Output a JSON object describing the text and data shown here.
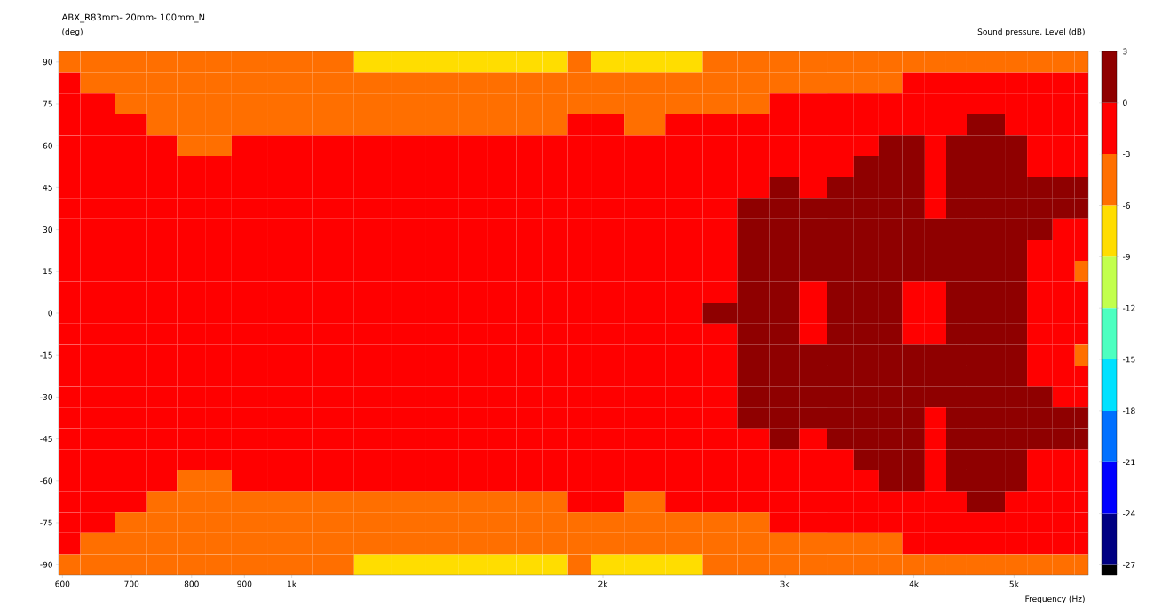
{
  "chart_data": {
    "type": "heatmap",
    "title": "ABX_R83mm- 20mm- 100mm_N",
    "ylabel": "(deg)",
    "xlabel": "Frequency  (Hz)",
    "clabel": "Sound pressure, Level  (dB)",
    "log": "x",
    "xlim": [
      595,
      5900
    ],
    "xticks": [
      600,
      700,
      800,
      900,
      {
        "value": 1000,
        "label": "1k"
      },
      {
        "value": 2000,
        "label": "2k"
      },
      {
        "value": 3000,
        "label": "3k"
      },
      {
        "value": 4000,
        "label": "4k"
      },
      {
        "value": 5000,
        "label": "5k"
      }
    ],
    "x": [
      600,
      650,
      700,
      750,
      800,
      850,
      900,
      1000,
      1100,
      1200,
      1300,
      1400,
      1500,
      1600,
      1700,
      1800,
      1900,
      2000,
      2200,
      2400,
      2600,
      2800,
      3000,
      3200,
      3400,
      3600,
      3800,
      4000,
      4200,
      4400,
      4600,
      4800,
      5000,
      5300,
      5600,
      5850
    ],
    "y_categories": [
      "90",
      null,
      "75",
      null,
      "60",
      null,
      "45",
      null,
      "30",
      null,
      "15",
      null,
      "0",
      null,
      "-15",
      null,
      "-30",
      null,
      "-45",
      null,
      "-60",
      null,
      "-75",
      null,
      "-90"
    ],
    "clim": [
      -27.6,
      3
    ],
    "cticks": [
      3,
      0,
      -3,
      -6,
      -9,
      -12,
      -15,
      -18,
      -21,
      -24,
      -27
    ],
    "cells": [
      [
        -4.5,
        -4.5,
        -4.5,
        -4.5,
        -4.5,
        -4.5,
        -4.5,
        -4.5,
        -4.5,
        -7.5,
        -7.5,
        -7.5,
        -7.5,
        -7.5,
        -7.5,
        -7.5,
        -4.5,
        -7.5,
        -7.5,
        -7.5,
        -4.5,
        -4.5,
        -4.5,
        -4.5,
        -4.5,
        -4.5,
        -4.5,
        -4.5,
        -4.5,
        -4.5,
        -4.5,
        -4.5,
        -4.5,
        -4.5,
        -4.5,
        -4.5
      ],
      [
        -1.5,
        -4.5,
        -4.5,
        -4.5,
        -4.5,
        -4.5,
        -4.5,
        -4.5,
        -4.5,
        -4.5,
        -4.5,
        -4.5,
        -4.5,
        -4.5,
        -4.5,
        -4.5,
        -4.5,
        -4.5,
        -4.5,
        -4.5,
        -4.5,
        -4.5,
        -4.5,
        -4.5,
        -4.5,
        -4.5,
        -4.5,
        -1.5,
        -1.5,
        -1.5,
        -1.5,
        -1.5,
        -1.5,
        -1.5,
        -1.5,
        -1.5
      ],
      [
        -1.5,
        -1.5,
        -4.5,
        -4.5,
        -4.5,
        -4.5,
        -4.5,
        -4.5,
        -4.5,
        -4.5,
        -4.5,
        -4.5,
        -4.5,
        -4.5,
        -4.5,
        -4.5,
        -4.5,
        -4.5,
        -4.5,
        -4.5,
        -4.5,
        -4.5,
        -1.5,
        -1.5,
        -1.5,
        -1.5,
        -1.5,
        -1.5,
        -1.5,
        -1.5,
        -1.5,
        -1.5,
        -1.5,
        -1.5,
        -1.5,
        -1.5
      ],
      [
        -1.5,
        -1.5,
        -1.5,
        -4.5,
        -4.5,
        -4.5,
        -4.5,
        -4.5,
        -4.5,
        -4.5,
        -4.5,
        -4.5,
        -4.5,
        -4.5,
        -4.5,
        -4.5,
        -1.5,
        -1.5,
        -4.5,
        -1.5,
        -1.5,
        -1.5,
        -1.5,
        -1.5,
        -1.5,
        -1.5,
        -1.5,
        -1.5,
        -1.5,
        -1.5,
        1.5,
        1.5,
        -1.5,
        -1.5,
        -1.5,
        -1.5
      ],
      [
        -1.5,
        -1.5,
        -1.5,
        -1.5,
        -4.5,
        -4.5,
        -1.5,
        -1.5,
        -1.5,
        -1.5,
        -1.5,
        -1.5,
        -1.5,
        -1.5,
        -1.5,
        -1.5,
        -1.5,
        -1.5,
        -1.5,
        -1.5,
        -1.5,
        -1.5,
        -1.5,
        -1.5,
        -1.5,
        -1.5,
        1.5,
        1.5,
        -1.5,
        1.5,
        1.5,
        1.5,
        1.5,
        -1.5,
        -1.5,
        -1.5
      ],
      [
        -1.5,
        -1.5,
        -1.5,
        -1.5,
        -1.5,
        -1.5,
        -1.5,
        -1.5,
        -1.5,
        -1.5,
        -1.5,
        -1.5,
        -1.5,
        -1.5,
        -1.5,
        -1.5,
        -1.5,
        -1.5,
        -1.5,
        -1.5,
        -1.5,
        -1.5,
        -1.5,
        -1.5,
        -1.5,
        1.5,
        1.5,
        1.5,
        -1.5,
        1.5,
        1.5,
        1.5,
        1.5,
        -1.5,
        -1.5,
        -1.5
      ],
      [
        -1.5,
        -1.5,
        -1.5,
        -1.5,
        -1.5,
        -1.5,
        -1.5,
        -1.5,
        -1.5,
        -1.5,
        -1.5,
        -1.5,
        -1.5,
        -1.5,
        -1.5,
        -1.5,
        -1.5,
        -1.5,
        -1.5,
        -1.5,
        -1.5,
        -1.5,
        1.5,
        -1.5,
        1.5,
        1.5,
        1.5,
        1.5,
        -1.5,
        1.5,
        1.5,
        1.5,
        1.5,
        1.5,
        1.5,
        1.5
      ],
      [
        -1.5,
        -1.5,
        -1.5,
        -1.5,
        -1.5,
        -1.5,
        -1.5,
        -1.5,
        -1.5,
        -1.5,
        -1.5,
        -1.5,
        -1.5,
        -1.5,
        -1.5,
        -1.5,
        -1.5,
        -1.5,
        -1.5,
        -1.5,
        -1.5,
        1.5,
        1.5,
        1.5,
        1.5,
        1.5,
        1.5,
        1.5,
        -1.5,
        1.5,
        1.5,
        1.5,
        1.5,
        1.5,
        1.5,
        1.5
      ],
      [
        -1.5,
        -1.5,
        -1.5,
        -1.5,
        -1.5,
        -1.5,
        -1.5,
        -1.5,
        -1.5,
        -1.5,
        -1.5,
        -1.5,
        -1.5,
        -1.5,
        -1.5,
        -1.5,
        -1.5,
        -1.5,
        -1.5,
        -1.5,
        -1.5,
        1.5,
        1.5,
        1.5,
        1.5,
        1.5,
        1.5,
        1.5,
        1.5,
        1.5,
        1.5,
        1.5,
        1.5,
        1.5,
        -1.5,
        -1.5
      ],
      [
        -1.5,
        -1.5,
        -1.5,
        -1.5,
        -1.5,
        -1.5,
        -1.5,
        -1.5,
        -1.5,
        -1.5,
        -1.5,
        -1.5,
        -1.5,
        -1.5,
        -1.5,
        -1.5,
        -1.5,
        -1.5,
        -1.5,
        -1.5,
        -1.5,
        1.5,
        1.5,
        1.5,
        1.5,
        1.5,
        1.5,
        1.5,
        1.5,
        1.5,
        1.5,
        1.5,
        1.5,
        -1.5,
        -1.5,
        -1.5
      ],
      [
        -1.5,
        -1.5,
        -1.5,
        -1.5,
        -1.5,
        -1.5,
        -1.5,
        -1.5,
        -1.5,
        -1.5,
        -1.5,
        -1.5,
        -1.5,
        -1.5,
        -1.5,
        -1.5,
        -1.5,
        -1.5,
        -1.5,
        -1.5,
        -1.5,
        1.5,
        1.5,
        1.5,
        1.5,
        1.5,
        1.5,
        1.5,
        1.5,
        1.5,
        1.5,
        1.5,
        1.5,
        -1.5,
        -1.5,
        -4.5
      ],
      [
        -1.5,
        -1.5,
        -1.5,
        -1.5,
        -1.5,
        -1.5,
        -1.5,
        -1.5,
        -1.5,
        -1.5,
        -1.5,
        -1.5,
        -1.5,
        -1.5,
        -1.5,
        -1.5,
        -1.5,
        -1.5,
        -1.5,
        -1.5,
        -1.5,
        1.5,
        1.5,
        -1.5,
        1.5,
        1.5,
        1.5,
        -1.5,
        -1.5,
        1.5,
        1.5,
        1.5,
        1.5,
        -1.5,
        -1.5,
        -1.5
      ],
      [
        -1.5,
        -1.5,
        -1.5,
        -1.5,
        -1.5,
        -1.5,
        -1.5,
        -1.5,
        -1.5,
        -1.5,
        -1.5,
        -1.5,
        -1.5,
        -1.5,
        -1.5,
        -1.5,
        -1.5,
        -1.5,
        -1.5,
        -1.5,
        1.5,
        1.5,
        1.5,
        -1.5,
        1.5,
        1.5,
        1.5,
        -1.5,
        -1.5,
        1.5,
        1.5,
        1.5,
        1.5,
        -1.5,
        -1.5,
        -1.5
      ],
      [
        -1.5,
        -1.5,
        -1.5,
        -1.5,
        -1.5,
        -1.5,
        -1.5,
        -1.5,
        -1.5,
        -1.5,
        -1.5,
        -1.5,
        -1.5,
        -1.5,
        -1.5,
        -1.5,
        -1.5,
        -1.5,
        -1.5,
        -1.5,
        -1.5,
        1.5,
        1.5,
        -1.5,
        1.5,
        1.5,
        1.5,
        -1.5,
        -1.5,
        1.5,
        1.5,
        1.5,
        1.5,
        -1.5,
        -1.5,
        -1.5
      ],
      [
        -1.5,
        -1.5,
        -1.5,
        -1.5,
        -1.5,
        -1.5,
        -1.5,
        -1.5,
        -1.5,
        -1.5,
        -1.5,
        -1.5,
        -1.5,
        -1.5,
        -1.5,
        -1.5,
        -1.5,
        -1.5,
        -1.5,
        -1.5,
        -1.5,
        1.5,
        1.5,
        1.5,
        1.5,
        1.5,
        1.5,
        1.5,
        1.5,
        1.5,
        1.5,
        1.5,
        1.5,
        -1.5,
        -1.5,
        -4.5
      ],
      [
        -1.5,
        -1.5,
        -1.5,
        -1.5,
        -1.5,
        -1.5,
        -1.5,
        -1.5,
        -1.5,
        -1.5,
        -1.5,
        -1.5,
        -1.5,
        -1.5,
        -1.5,
        -1.5,
        -1.5,
        -1.5,
        -1.5,
        -1.5,
        -1.5,
        1.5,
        1.5,
        1.5,
        1.5,
        1.5,
        1.5,
        1.5,
        1.5,
        1.5,
        1.5,
        1.5,
        1.5,
        -1.5,
        -1.5,
        -1.5
      ],
      [
        -1.5,
        -1.5,
        -1.5,
        -1.5,
        -1.5,
        -1.5,
        -1.5,
        -1.5,
        -1.5,
        -1.5,
        -1.5,
        -1.5,
        -1.5,
        -1.5,
        -1.5,
        -1.5,
        -1.5,
        -1.5,
        -1.5,
        -1.5,
        -1.5,
        1.5,
        1.5,
        1.5,
        1.5,
        1.5,
        1.5,
        1.5,
        1.5,
        1.5,
        1.5,
        1.5,
        1.5,
        1.5,
        -1.5,
        -1.5
      ],
      [
        -1.5,
        -1.5,
        -1.5,
        -1.5,
        -1.5,
        -1.5,
        -1.5,
        -1.5,
        -1.5,
        -1.5,
        -1.5,
        -1.5,
        -1.5,
        -1.5,
        -1.5,
        -1.5,
        -1.5,
        -1.5,
        -1.5,
        -1.5,
        -1.5,
        1.5,
        1.5,
        1.5,
        1.5,
        1.5,
        1.5,
        1.5,
        -1.5,
        1.5,
        1.5,
        1.5,
        1.5,
        1.5,
        1.5,
        1.5
      ],
      [
        -1.5,
        -1.5,
        -1.5,
        -1.5,
        -1.5,
        -1.5,
        -1.5,
        -1.5,
        -1.5,
        -1.5,
        -1.5,
        -1.5,
        -1.5,
        -1.5,
        -1.5,
        -1.5,
        -1.5,
        -1.5,
        -1.5,
        -1.5,
        -1.5,
        -1.5,
        1.5,
        -1.5,
        1.5,
        1.5,
        1.5,
        1.5,
        -1.5,
        1.5,
        1.5,
        1.5,
        1.5,
        1.5,
        1.5,
        1.5
      ],
      [
        -1.5,
        -1.5,
        -1.5,
        -1.5,
        -1.5,
        -1.5,
        -1.5,
        -1.5,
        -1.5,
        -1.5,
        -1.5,
        -1.5,
        -1.5,
        -1.5,
        -1.5,
        -1.5,
        -1.5,
        -1.5,
        -1.5,
        -1.5,
        -1.5,
        -1.5,
        -1.5,
        -1.5,
        -1.5,
        1.5,
        1.5,
        1.5,
        -1.5,
        1.5,
        1.5,
        1.5,
        1.5,
        -1.5,
        -1.5,
        -1.5
      ],
      [
        -1.5,
        -1.5,
        -1.5,
        -1.5,
        -4.5,
        -4.5,
        -1.5,
        -1.5,
        -1.5,
        -1.5,
        -1.5,
        -1.5,
        -1.5,
        -1.5,
        -1.5,
        -1.5,
        -1.5,
        -1.5,
        -1.5,
        -1.5,
        -1.5,
        -1.5,
        -1.5,
        -1.5,
        -1.5,
        -1.5,
        1.5,
        1.5,
        -1.5,
        1.5,
        1.5,
        1.5,
        1.5,
        -1.5,
        -1.5,
        -1.5
      ],
      [
        -1.5,
        -1.5,
        -1.5,
        -4.5,
        -4.5,
        -4.5,
        -4.5,
        -4.5,
        -4.5,
        -4.5,
        -4.5,
        -4.5,
        -4.5,
        -4.5,
        -4.5,
        -4.5,
        -1.5,
        -1.5,
        -4.5,
        -1.5,
        -1.5,
        -1.5,
        -1.5,
        -1.5,
        -1.5,
        -1.5,
        -1.5,
        -1.5,
        -1.5,
        -1.5,
        1.5,
        1.5,
        -1.5,
        -1.5,
        -1.5,
        -1.5
      ],
      [
        -1.5,
        -1.5,
        -4.5,
        -4.5,
        -4.5,
        -4.5,
        -4.5,
        -4.5,
        -4.5,
        -4.5,
        -4.5,
        -4.5,
        -4.5,
        -4.5,
        -4.5,
        -4.5,
        -4.5,
        -4.5,
        -4.5,
        -4.5,
        -4.5,
        -4.5,
        -1.5,
        -1.5,
        -1.5,
        -1.5,
        -1.5,
        -1.5,
        -1.5,
        -1.5,
        -1.5,
        -1.5,
        -1.5,
        -1.5,
        -1.5,
        -1.5
      ],
      [
        -1.5,
        -4.5,
        -4.5,
        -4.5,
        -4.5,
        -4.5,
        -4.5,
        -4.5,
        -4.5,
        -4.5,
        -4.5,
        -4.5,
        -4.5,
        -4.5,
        -4.5,
        -4.5,
        -4.5,
        -4.5,
        -4.5,
        -4.5,
        -4.5,
        -4.5,
        -4.5,
        -4.5,
        -4.5,
        -4.5,
        -4.5,
        -1.5,
        -1.5,
        -1.5,
        -1.5,
        -1.5,
        -1.5,
        -1.5,
        -1.5,
        -1.5
      ],
      [
        -4.5,
        -4.5,
        -4.5,
        -4.5,
        -4.5,
        -4.5,
        -4.5,
        -4.5,
        -4.5,
        -7.5,
        -7.5,
        -7.5,
        -7.5,
        -7.5,
        -7.5,
        -7.5,
        -4.5,
        -7.5,
        -7.5,
        -7.5,
        -4.5,
        -4.5,
        -4.5,
        -4.5,
        -4.5,
        -4.5,
        -4.5,
        -4.5,
        -4.5,
        -4.5,
        -4.5,
        -4.5,
        -4.5,
        -4.5,
        -4.5,
        -4.5
      ]
    ]
  }
}
